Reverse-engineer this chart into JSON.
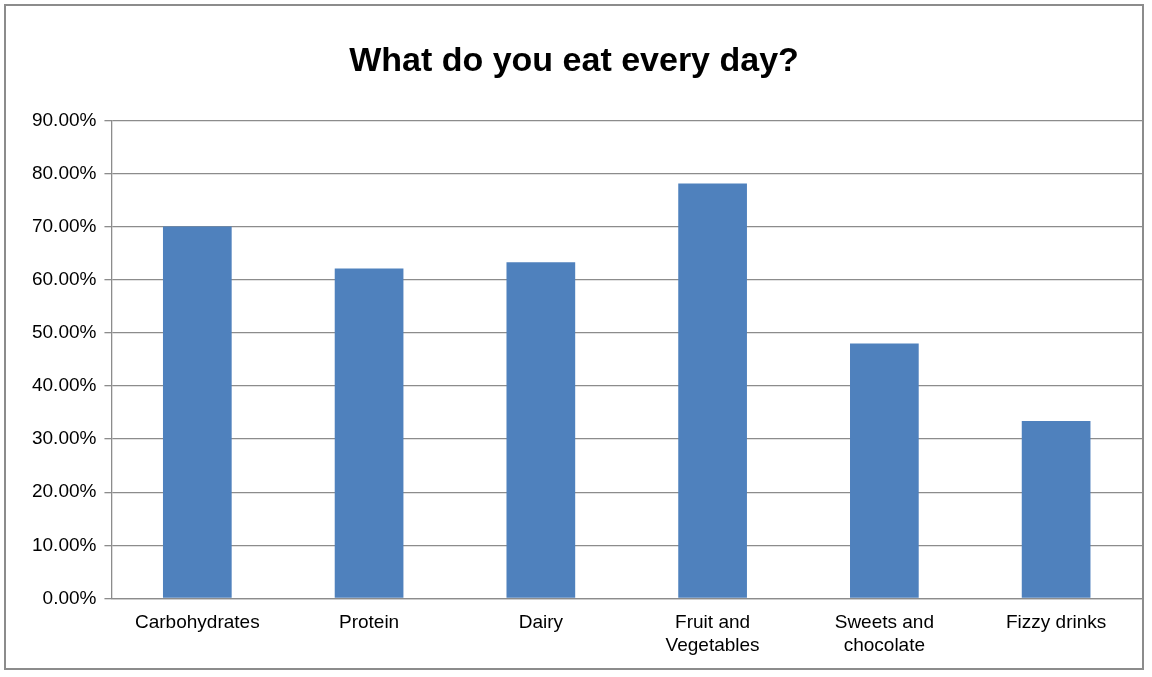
{
  "chart_data": {
    "type": "bar",
    "title": "What do you eat every day?",
    "categories": [
      "Carbohydrates",
      "Protein",
      "Dairy",
      "Fruit and Vegetables",
      "Sweets and chocolate",
      "Fizzy drinks"
    ],
    "values": [
      70,
      62.1,
      63.3,
      78.1,
      48,
      33.4
    ],
    "color": "#4f81bd",
    "ylim": [
      0,
      90
    ],
    "yticks": [
      {
        "value": 0,
        "label": "0.00%"
      },
      {
        "value": 10,
        "label": "10.00%"
      },
      {
        "value": 20,
        "label": "20.00%"
      },
      {
        "value": 30,
        "label": "30.00%"
      },
      {
        "value": 40,
        "label": "40.00%"
      },
      {
        "value": 50,
        "label": "50.00%"
      },
      {
        "value": 60,
        "label": "60.00%"
      },
      {
        "value": 70,
        "label": "70.00%"
      },
      {
        "value": 80,
        "label": "80.00%"
      },
      {
        "value": 90,
        "label": "90.00%"
      }
    ],
    "grid": "y",
    "legend": false
  }
}
